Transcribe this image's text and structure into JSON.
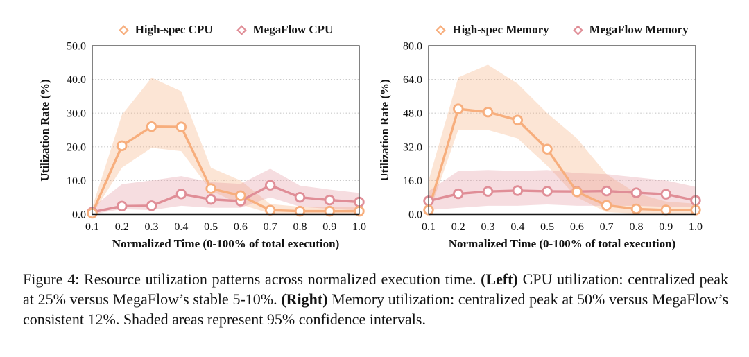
{
  "figure": {
    "caption": {
      "part1": "Figure 4: Resource utilization patterns across normalized execution time. ",
      "bold1": "(Left)",
      "part2": " CPU utilization: centralized peak at 25% versus MegaFlow’s stable 5-10%. ",
      "bold2": "(Right)",
      "part3": " Memory utilization: centralized peak at 50% versus MegaFlow’s consistent 12%. Shaded areas represent 95% confidence intervals."
    }
  },
  "colors": {
    "high_spec": "#F7AE7D",
    "high_spec_band": "rgba(247,174,125,0.32)",
    "megaflow": "#E08E97",
    "megaflow_band": "rgba(224,142,151,0.30)",
    "grid": "#c9c9c9",
    "border": "#4d4d4d",
    "spine": "#151515",
    "marker_fill": "#ffffff"
  },
  "chart_data": [
    {
      "type": "line",
      "title": "",
      "xlabel": "Normalized Time (0-100% of total execution)",
      "ylabel": "Utilization Rate (%)",
      "x": [
        0.1,
        0.2,
        0.3,
        0.4,
        0.5,
        0.6,
        0.7,
        0.8,
        0.9,
        1.0
      ],
      "xticklabels": [
        "0.1",
        "0.2",
        "0.3",
        "0.4",
        "0.5",
        "0.6",
        "0.7",
        "0.8",
        "0.9",
        "1.0"
      ],
      "ylim": [
        0,
        50
      ],
      "yticks": [
        0,
        10,
        20,
        30,
        40,
        50
      ],
      "yticklabels": [
        "0.0",
        "10.0",
        "20.0",
        "30.0",
        "40.0",
        "50.0"
      ],
      "grid": true,
      "legend_position": "top",
      "band_meaning": "95% confidence interval",
      "series": [
        {
          "name": "High-spec CPU",
          "color_key": "high_spec",
          "values": [
            0.3,
            20.3,
            26.0,
            25.9,
            7.6,
            5.5,
            1.2,
            0.9,
            0.9,
            0.9
          ],
          "lower": [
            0,
            13.8,
            19.7,
            18.7,
            7.0,
            2.9,
            0.2,
            0.2,
            0.2,
            0.2
          ],
          "upper": [
            2.0,
            29.5,
            40.5,
            36.5,
            13.8,
            10.0,
            3.0,
            2.2,
            2.2,
            2.2
          ]
        },
        {
          "name": "MegaFlow CPU",
          "color_key": "megaflow",
          "values": [
            0.6,
            2.4,
            2.5,
            6.0,
            4.4,
            3.9,
            8.6,
            5.0,
            4.2,
            3.6
          ],
          "lower": [
            0,
            1.5,
            1.2,
            2.5,
            1.9,
            1.9,
            5.0,
            2.2,
            1.6,
            1.2
          ],
          "upper": [
            2.0,
            8.9,
            10.0,
            11.3,
            9.5,
            9.0,
            13.5,
            8.5,
            7.3,
            6.3
          ]
        }
      ]
    },
    {
      "type": "line",
      "title": "",
      "xlabel": "Normalized Time (0-100% of total execution)",
      "ylabel": "Utilization Rate (%)",
      "x": [
        0.1,
        0.2,
        0.3,
        0.4,
        0.5,
        0.6,
        0.7,
        0.8,
        0.9,
        1.0
      ],
      "xticklabels": [
        "0.1",
        "0.2",
        "0.3",
        "0.4",
        "0.5",
        "0.6",
        "0.7",
        "0.8",
        "0.9",
        "1.0"
      ],
      "ylim": [
        0,
        80
      ],
      "yticks": [
        0,
        16,
        32,
        48,
        64,
        80
      ],
      "yticklabels": [
        "0.0",
        "16.0",
        "32.0",
        "48.0",
        "64.0",
        "80.0"
      ],
      "grid": true,
      "legend_position": "top",
      "band_meaning": "95% confidence interval",
      "series": [
        {
          "name": "High-spec Memory",
          "color_key": "high_spec",
          "values": [
            2.0,
            50.0,
            48.5,
            44.7,
            30.9,
            10.6,
            4.2,
            2.5,
            2.0,
            2.0
          ],
          "lower": [
            0,
            40.0,
            40.0,
            36.0,
            23.0,
            8.0,
            1.0,
            0.3,
            0.3,
            0.3
          ],
          "upper": [
            16.0,
            65.0,
            71.0,
            62.0,
            48.0,
            36.0,
            19.0,
            10.0,
            6.0,
            5.0
          ]
        },
        {
          "name": "MegaFlow Memory",
          "color_key": "megaflow",
          "values": [
            6.3,
            9.7,
            10.8,
            11.2,
            10.9,
            10.8,
            11.0,
            10.2,
            9.5,
            6.5
          ],
          "lower": [
            2.0,
            3.0,
            4.0,
            4.0,
            4.6,
            4.0,
            4.0,
            4.0,
            3.5,
            3.5
          ],
          "upper": [
            11.0,
            20.5,
            21.0,
            20.5,
            21.0,
            19.5,
            19.0,
            17.5,
            16.0,
            13.0
          ]
        }
      ]
    }
  ]
}
